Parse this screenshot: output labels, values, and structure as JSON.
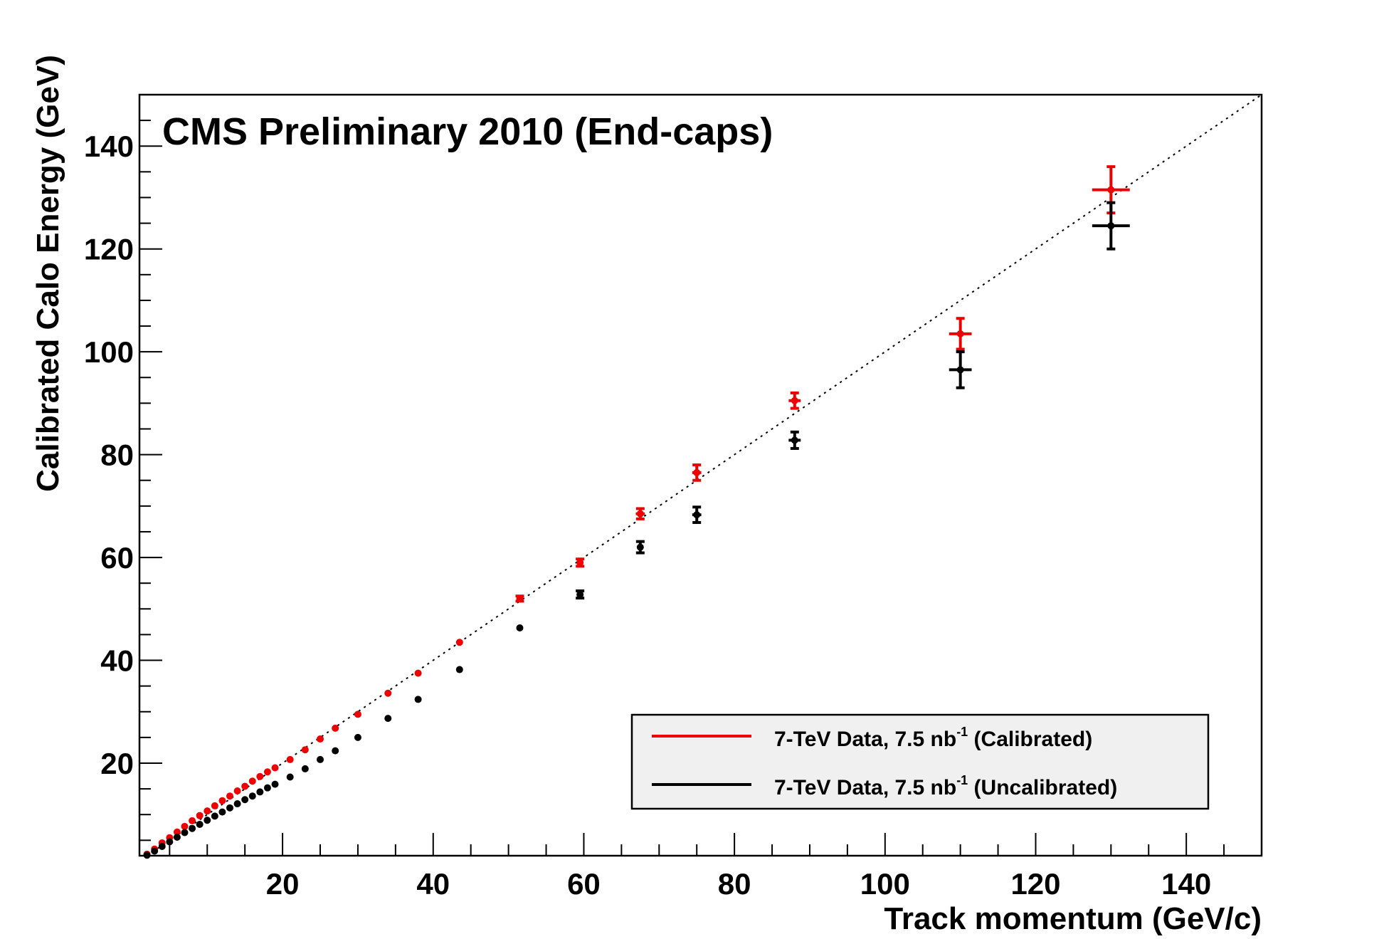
{
  "chart_data": {
    "type": "scatter",
    "title": "CMS Preliminary 2010 (End-caps)",
    "xlabel": "Track momentum (GeV/c)",
    "ylabel": "Calibrated Calo Energy (GeV)",
    "xlim": [
      1,
      150
    ],
    "ylim": [
      2,
      150
    ],
    "x_ticks": [
      20,
      40,
      60,
      80,
      100,
      120,
      140
    ],
    "y_ticks": [
      20,
      40,
      60,
      80,
      100,
      120,
      140
    ],
    "grid": false,
    "reference_line": "y = x (dotted)",
    "legend_position": "bottom-right",
    "legend": [
      {
        "prefix": "7-TeV Data, 7.5 nb",
        "sup": "-1",
        "suffix": " (Calibrated)",
        "color": "#ee0000"
      },
      {
        "prefix": "7-TeV Data, 7.5 nb",
        "sup": "-1",
        "suffix": " (Uncalibrated)",
        "color": "#000000"
      }
    ],
    "series": [
      {
        "name": "7-TeV Data, 7.5 nb-1 (Calibrated)",
        "color": "#ee0000",
        "x": [
          2,
          3,
          4,
          5,
          6,
          7,
          8,
          9,
          10,
          11,
          12,
          13,
          14,
          15,
          16,
          17,
          18,
          19,
          21,
          23,
          25,
          27,
          30,
          34,
          38,
          43.5,
          51.5,
          59.5,
          67.5,
          75,
          88,
          110,
          130
        ],
        "y": [
          2.3,
          3.3,
          4.5,
          5.5,
          6.6,
          7.7,
          8.8,
          9.8,
          10.7,
          11.7,
          12.7,
          13.6,
          14.6,
          15.5,
          16.5,
          17.4,
          18.3,
          19.1,
          20.7,
          22.6,
          24.7,
          26.8,
          29.5,
          33.6,
          37.5,
          43.5,
          52,
          59,
          68.5,
          76.5,
          90.5,
          103.5,
          131.5
        ],
        "xerr": [
          0,
          0,
          0,
          0,
          0,
          0,
          0,
          0,
          0,
          0,
          0,
          0,
          0,
          0,
          0,
          0,
          0,
          0,
          0,
          0,
          0,
          0,
          0,
          0,
          0,
          0,
          0,
          0,
          0.6,
          0.6,
          0.8,
          1.5,
          2.5
        ],
        "yerr": [
          0,
          0,
          0,
          0,
          0,
          0,
          0,
          0,
          0,
          0,
          0,
          0,
          0,
          0,
          0,
          0,
          0,
          0,
          0,
          0,
          0,
          0,
          0,
          0,
          0,
          0,
          0.5,
          0.7,
          1,
          1.5,
          1.5,
          3,
          4.5
        ]
      },
      {
        "name": "7-TeV Data, 7.5 nb-1 (Uncalibrated)",
        "color": "#000000",
        "x": [
          2,
          3,
          4,
          5,
          6,
          7,
          8,
          9,
          10,
          11,
          12,
          13,
          14,
          15,
          16,
          17,
          18,
          19,
          21,
          23,
          25,
          27,
          30,
          34,
          38,
          43.5,
          51.5,
          59.5,
          67.5,
          75,
          88,
          110,
          130
        ],
        "y": [
          2.1,
          2.9,
          3.8,
          4.7,
          5.6,
          6.5,
          7.3,
          8.1,
          8.9,
          9.7,
          10.5,
          11.3,
          12.1,
          12.9,
          13.6,
          14.4,
          15.2,
          15.9,
          17.3,
          18.9,
          20.7,
          22.4,
          25,
          28.7,
          32.4,
          38.2,
          46.3,
          52.8,
          62,
          68.3,
          82.8,
          96.5,
          124.5
        ],
        "xerr": [
          0,
          0,
          0,
          0,
          0,
          0,
          0,
          0,
          0,
          0,
          0,
          0,
          0,
          0,
          0,
          0,
          0,
          0,
          0,
          0,
          0,
          0,
          0,
          0,
          0,
          0,
          0,
          0,
          0,
          0.6,
          0.8,
          1.5,
          2.5
        ],
        "yerr": [
          0,
          0,
          0,
          0,
          0,
          0,
          0,
          0,
          0,
          0,
          0,
          0,
          0,
          0,
          0,
          0,
          0,
          0,
          0,
          0,
          0,
          0,
          0,
          0,
          0,
          0,
          0,
          0.7,
          1.1,
          1.5,
          1.6,
          3.5,
          4.5
        ]
      }
    ]
  }
}
